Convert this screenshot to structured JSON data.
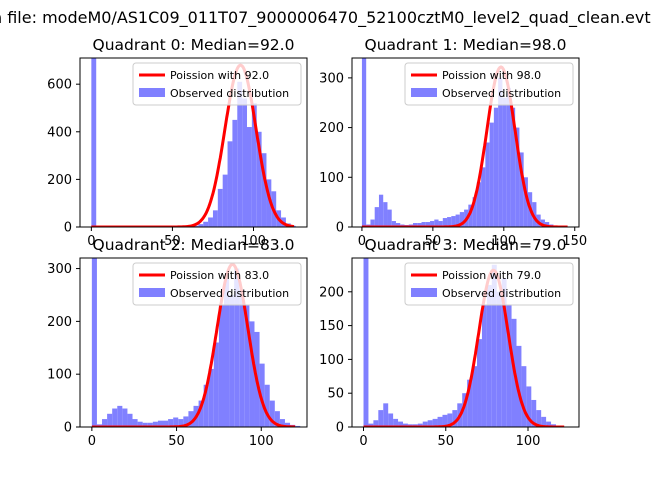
{
  "figure": {
    "suptitle": "n file: modeM0/AS1C09_011T07_9000006470_52100cztM0_level2_quad_clean.evt",
    "colors": {
      "bars": "#8080ff",
      "poisson": "#ff0000"
    }
  },
  "chart_data": [
    {
      "type": "bar",
      "title": "Quadrant 0: Median=92.0",
      "legend": {
        "placement": "top-right",
        "entries": [
          "Poission with 92.0",
          "Observed distribution"
        ]
      },
      "xlim": [
        -7,
        133
      ],
      "ylim": [
        0,
        710
      ],
      "xticks": [
        0,
        50,
        100
      ],
      "yticks": [
        0,
        200,
        400,
        600
      ],
      "bin_width": 3,
      "bins": [
        [
          0,
          710
        ],
        [
          3,
          0
        ],
        [
          6,
          0
        ],
        [
          9,
          0
        ],
        [
          12,
          0
        ],
        [
          15,
          0
        ],
        [
          18,
          0
        ],
        [
          21,
          0
        ],
        [
          24,
          0
        ],
        [
          27,
          0
        ],
        [
          30,
          0
        ],
        [
          33,
          0
        ],
        [
          36,
          0
        ],
        [
          39,
          0
        ],
        [
          42,
          0
        ],
        [
          45,
          0
        ],
        [
          48,
          0
        ],
        [
          51,
          0
        ],
        [
          54,
          0
        ],
        [
          57,
          0
        ],
        [
          60,
          3
        ],
        [
          63,
          5
        ],
        [
          66,
          12
        ],
        [
          69,
          22
        ],
        [
          72,
          40
        ],
        [
          75,
          70
        ],
        [
          78,
          160
        ],
        [
          81,
          220
        ],
        [
          84,
          360
        ],
        [
          87,
          450
        ],
        [
          90,
          610
        ],
        [
          93,
          540
        ],
        [
          96,
          420
        ],
        [
          99,
          520
        ],
        [
          102,
          400
        ],
        [
          105,
          310
        ],
        [
          108,
          200
        ],
        [
          111,
          150
        ],
        [
          114,
          70
        ],
        [
          117,
          40
        ],
        [
          120,
          15
        ],
        [
          123,
          5
        ]
      ],
      "poisson": {
        "mean": 92.0,
        "peak": 680,
        "range": [
          0,
          125
        ]
      }
    },
    {
      "type": "bar",
      "title": "Quadrant 1: Median=98.0",
      "legend": {
        "placement": "top-right",
        "entries": [
          "Poission with 98.0",
          "Observed distribution"
        ]
      },
      "xlim": [
        -7,
        153
      ],
      "ylim": [
        0,
        340
      ],
      "xticks": [
        0,
        50,
        100,
        150
      ],
      "yticks": [
        0,
        100,
        200,
        300
      ],
      "bin_width": 3,
      "bins": [
        [
          0,
          340
        ],
        [
          3,
          5
        ],
        [
          6,
          15
        ],
        [
          9,
          40
        ],
        [
          12,
          65
        ],
        [
          15,
          50
        ],
        [
          18,
          35
        ],
        [
          21,
          12
        ],
        [
          24,
          8
        ],
        [
          27,
          5
        ],
        [
          30,
          4
        ],
        [
          33,
          5
        ],
        [
          36,
          8
        ],
        [
          39,
          8
        ],
        [
          42,
          10
        ],
        [
          45,
          10
        ],
        [
          48,
          12
        ],
        [
          51,
          15
        ],
        [
          54,
          12
        ],
        [
          57,
          18
        ],
        [
          60,
          20
        ],
        [
          63,
          22
        ],
        [
          66,
          25
        ],
        [
          69,
          30
        ],
        [
          72,
          35
        ],
        [
          75,
          45
        ],
        [
          78,
          60
        ],
        [
          81,
          90
        ],
        [
          84,
          120
        ],
        [
          87,
          170
        ],
        [
          90,
          210
        ],
        [
          93,
          240
        ],
        [
          96,
          300
        ],
        [
          99,
          260
        ],
        [
          102,
          280
        ],
        [
          105,
          240
        ],
        [
          108,
          200
        ],
        [
          111,
          150
        ],
        [
          114,
          100
        ],
        [
          117,
          70
        ],
        [
          120,
          50
        ],
        [
          123,
          25
        ],
        [
          126,
          15
        ],
        [
          129,
          10
        ],
        [
          132,
          5
        ]
      ],
      "poisson": {
        "mean": 98.0,
        "peak": 322,
        "range": [
          0,
          145
        ]
      }
    },
    {
      "type": "bar",
      "title": "Quadrant 2: Median=83.0",
      "legend": {
        "placement": "top-right",
        "entries": [
          "Poission with 83.0",
          "Observed distribution"
        ]
      },
      "xlim": [
        -7,
        127
      ],
      "ylim": [
        0,
        320
      ],
      "xticks": [
        0,
        50,
        100
      ],
      "yticks": [
        0,
        100,
        200,
        300
      ],
      "bin_width": 3,
      "bins": [
        [
          0,
          320
        ],
        [
          3,
          5
        ],
        [
          6,
          15
        ],
        [
          9,
          25
        ],
        [
          12,
          35
        ],
        [
          15,
          40
        ],
        [
          18,
          35
        ],
        [
          21,
          25
        ],
        [
          24,
          15
        ],
        [
          27,
          10
        ],
        [
          30,
          8
        ],
        [
          33,
          8
        ],
        [
          36,
          10
        ],
        [
          39,
          12
        ],
        [
          42,
          12
        ],
        [
          45,
          15
        ],
        [
          48,
          18
        ],
        [
          51,
          15
        ],
        [
          54,
          20
        ],
        [
          57,
          30
        ],
        [
          60,
          40
        ],
        [
          63,
          50
        ],
        [
          66,
          80
        ],
        [
          69,
          110
        ],
        [
          72,
          160
        ],
        [
          75,
          230
        ],
        [
          78,
          280
        ],
        [
          81,
          250
        ],
        [
          84,
          300
        ],
        [
          87,
          260
        ],
        [
          90,
          230
        ],
        [
          93,
          200
        ],
        [
          96,
          180
        ],
        [
          99,
          120
        ],
        [
          102,
          80
        ],
        [
          105,
          50
        ],
        [
          108,
          30
        ],
        [
          111,
          15
        ],
        [
          114,
          8
        ],
        [
          117,
          4
        ],
        [
          120,
          2
        ]
      ],
      "poisson": {
        "mean": 83.0,
        "peak": 308,
        "range": [
          0,
          120
        ]
      }
    },
    {
      "type": "bar",
      "title": "Quadrant 3: Median=79.0",
      "legend": {
        "placement": "top-right",
        "entries": [
          "Poission with 79.0",
          "Observed distribution"
        ]
      },
      "xlim": [
        -7,
        131
      ],
      "ylim": [
        0,
        250
      ],
      "xticks": [
        0,
        50,
        100
      ],
      "yticks": [
        0,
        50,
        100,
        150,
        200
      ],
      "bin_width": 3,
      "bins": [
        [
          0,
          250
        ],
        [
          3,
          5
        ],
        [
          6,
          10
        ],
        [
          9,
          25
        ],
        [
          12,
          35
        ],
        [
          15,
          20
        ],
        [
          18,
          12
        ],
        [
          21,
          8
        ],
        [
          24,
          5
        ],
        [
          27,
          4
        ],
        [
          30,
          4
        ],
        [
          33,
          5
        ],
        [
          36,
          8
        ],
        [
          39,
          10
        ],
        [
          42,
          12
        ],
        [
          45,
          15
        ],
        [
          48,
          18
        ],
        [
          51,
          20
        ],
        [
          54,
          25
        ],
        [
          57,
          35
        ],
        [
          60,
          50
        ],
        [
          63,
          70
        ],
        [
          66,
          90
        ],
        [
          69,
          130
        ],
        [
          72,
          180
        ],
        [
          75,
          210
        ],
        [
          78,
          240
        ],
        [
          81,
          200
        ],
        [
          84,
          220
        ],
        [
          87,
          180
        ],
        [
          90,
          160
        ],
        [
          93,
          120
        ],
        [
          96,
          90
        ],
        [
          99,
          60
        ],
        [
          102,
          40
        ],
        [
          105,
          25
        ],
        [
          108,
          15
        ],
        [
          111,
          8
        ],
        [
          114,
          4
        ],
        [
          117,
          2
        ]
      ],
      "poisson": {
        "mean": 79.0,
        "peak": 232,
        "range": [
          0,
          122
        ]
      }
    }
  ]
}
